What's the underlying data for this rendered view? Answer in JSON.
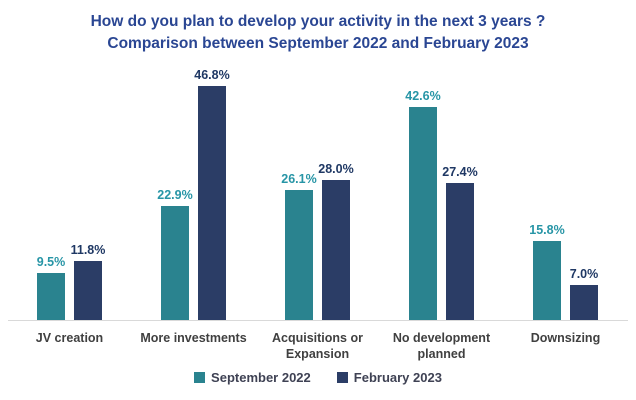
{
  "title": {
    "line1": "How do you plan to develop your activity in the next 3 years ?",
    "line2": "Comparison between September 2022 and February 2023"
  },
  "colors": {
    "background": "#FFFFFF",
    "title_text": "#2A4693",
    "bar_september_2022": "#2A838F",
    "bar_february_2023": "#2B3D66",
    "value_label_september_2022": "#2795A6",
    "value_label_february_2023": "#1F3864",
    "category_text": "#404040",
    "legend_text": "#3F4254",
    "axis_line": "#D9D9D9"
  },
  "chart_data": {
    "type": "bar",
    "title": "How do you plan to develop your activity in the next 3 years ?",
    "subtitle": "Comparison between September 2022 and February 2023",
    "categories": [
      "JV creation",
      "More investments",
      "Acquisitions or Expansion",
      "No development planned",
      "Downsizing"
    ],
    "series": [
      {
        "name": "September 2022",
        "color": "#2A838F",
        "label_color": "#2795A6",
        "values": [
          9.5,
          22.9,
          26.1,
          42.6,
          15.8
        ],
        "labels": [
          "9.5%",
          "22.9%",
          "26.1%",
          "42.6%",
          "15.8%"
        ]
      },
      {
        "name": "February 2023",
        "color": "#2B3D66",
        "label_color": "#1F3864",
        "values": [
          11.8,
          46.8,
          28.0,
          27.4,
          7.0
        ],
        "labels": [
          "11.8%",
          "46.8%",
          "28.0%",
          "27.4%",
          "7.0%"
        ]
      }
    ],
    "unit": "%",
    "ylim": [
      0,
      50
    ],
    "grid": false,
    "y_axis_visible": false,
    "legend_position": "bottom"
  },
  "legend": {
    "items": [
      {
        "label": "September 2022",
        "color": "#2A838F"
      },
      {
        "label": "February 2023",
        "color": "#2B3D66"
      }
    ]
  }
}
